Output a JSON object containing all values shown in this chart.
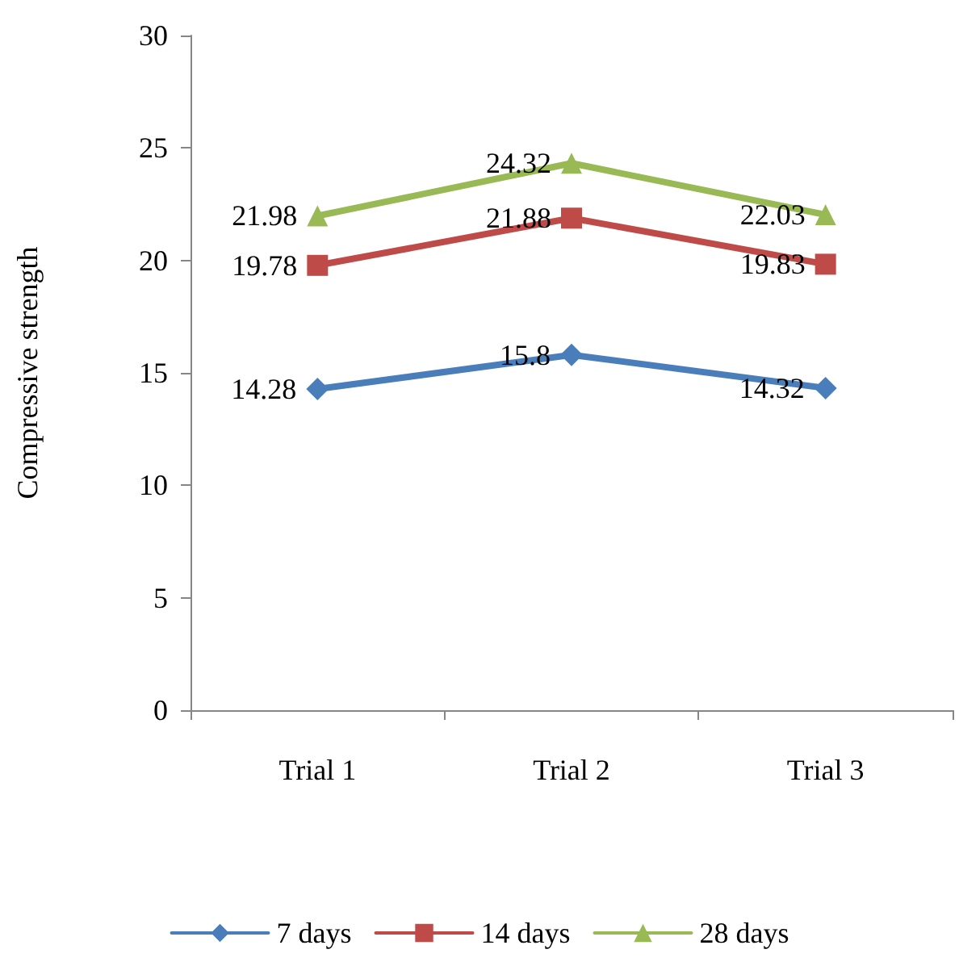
{
  "chart_data": {
    "type": "line",
    "ylabel": "Compressive strength",
    "categories": [
      "Trial 1",
      "Trial 2",
      "Trial 3"
    ],
    "series": [
      {
        "name": "7 days",
        "color": "#4a7ebb",
        "values": [
          14.28,
          15.8,
          14.32
        ],
        "marker": "diamond"
      },
      {
        "name": "14 days",
        "color": "#be4b48",
        "values": [
          19.78,
          21.88,
          19.83
        ],
        "marker": "square"
      },
      {
        "name": "28 days",
        "color": "#98b954",
        "values": [
          21.98,
          24.32,
          22.03
        ],
        "marker": "triangle"
      }
    ],
    "ylim": [
      0,
      30
    ],
    "yticks": [
      0,
      5,
      10,
      15,
      20,
      25,
      30
    ],
    "grid": false,
    "legend": "bottom",
    "data_labels": true,
    "line_style": "solid"
  }
}
